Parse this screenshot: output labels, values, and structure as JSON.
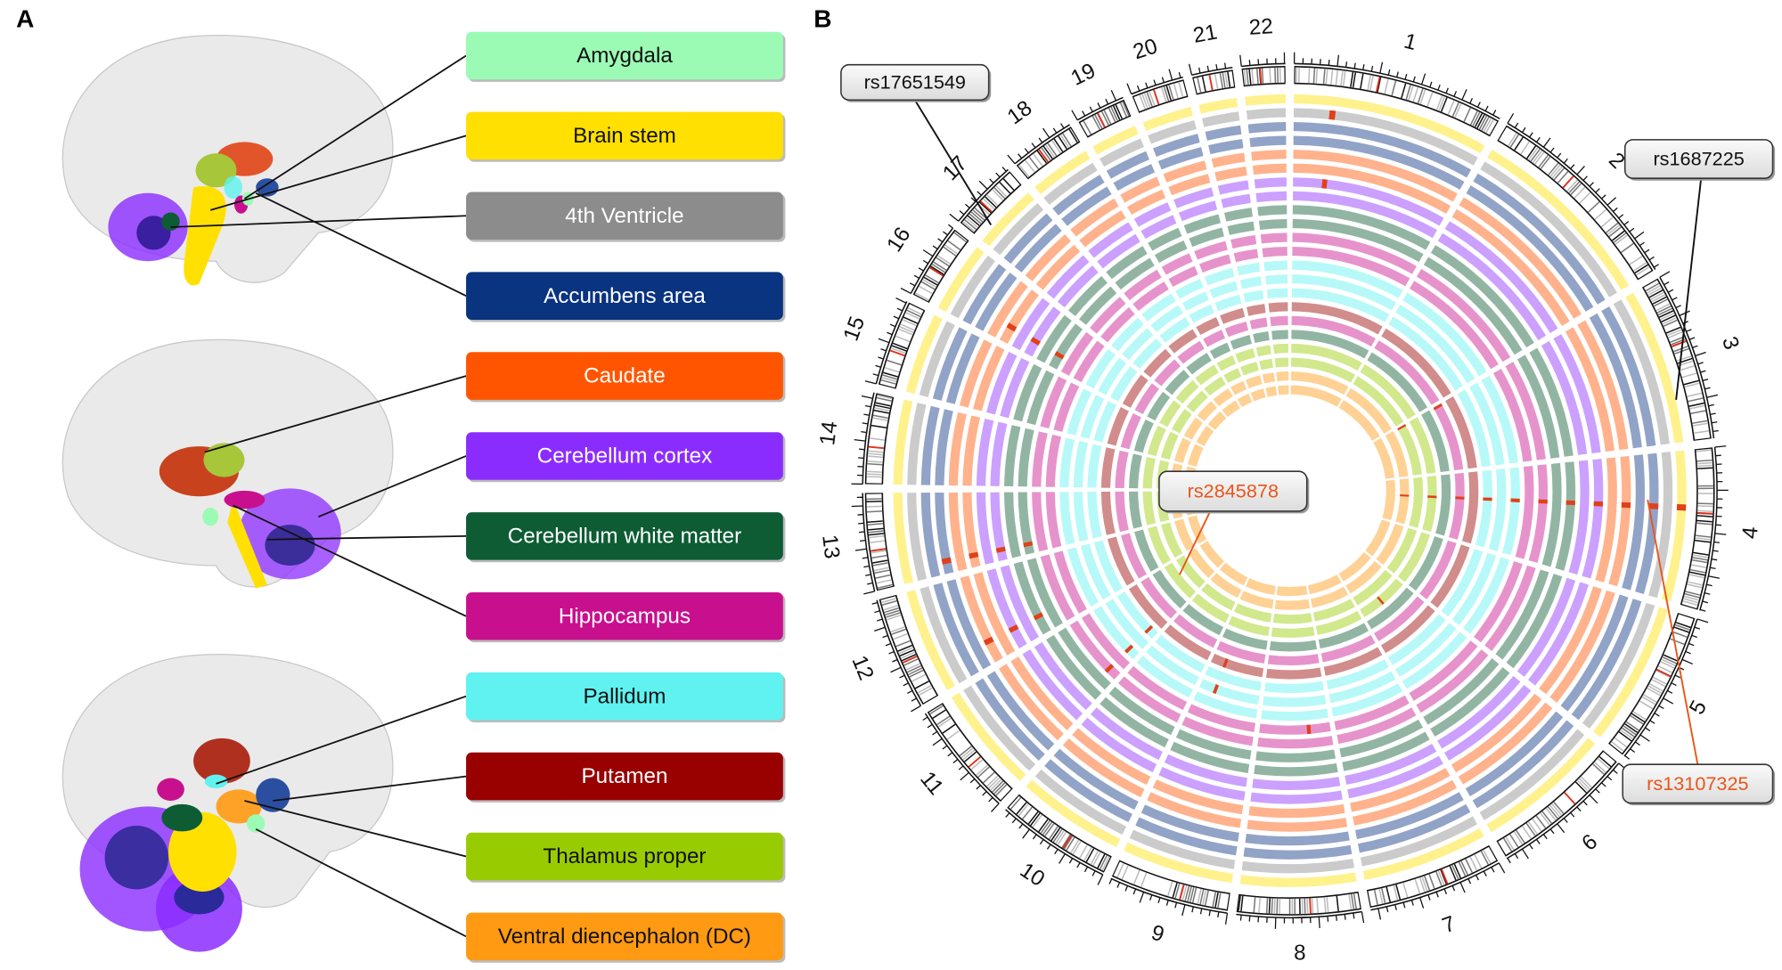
{
  "panels": {
    "a": "A",
    "b": "B"
  },
  "regions": [
    {
      "label": "Amygdala",
      "color": "#9bfbb5"
    },
    {
      "label": "Brain stem",
      "color": "#ffe000"
    },
    {
      "label": "4th Ventricle",
      "color": "#8c8c8c"
    },
    {
      "label": "Accumbens area",
      "color": "#0a3380"
    },
    {
      "label": "Caudate",
      "color": "#ff5500"
    },
    {
      "label": "Cerebellum cortex",
      "color": "#8b2cff"
    },
    {
      "label": "Cerebellum white matter",
      "color": "#0d5c34"
    },
    {
      "label": "Hippocampus",
      "color": "#c8108e"
    },
    {
      "label": "Pallidum",
      "color": "#5ff2f0"
    },
    {
      "label": "Putamen",
      "color": "#990000"
    },
    {
      "label": "Thalamus proper",
      "color": "#99cc00"
    },
    {
      "label": "Ventral diencephalon  (DC)",
      "color": "#ff9a12"
    }
  ],
  "chromosomes": [
    "1",
    "2",
    "3",
    "4",
    "5",
    "6",
    "7",
    "8",
    "9",
    "10",
    "11",
    "12",
    "13",
    "14",
    "15",
    "16",
    "17",
    "18",
    "19",
    "20",
    "21",
    "22"
  ],
  "snps": [
    {
      "label": "rs17651549",
      "color": "#111111"
    },
    {
      "label": "rs1687225",
      "color": "#111111"
    },
    {
      "label": "rs2845878",
      "color": "#e8561a"
    },
    {
      "label": "rs13107325",
      "color": "#e8561a"
    }
  ]
}
